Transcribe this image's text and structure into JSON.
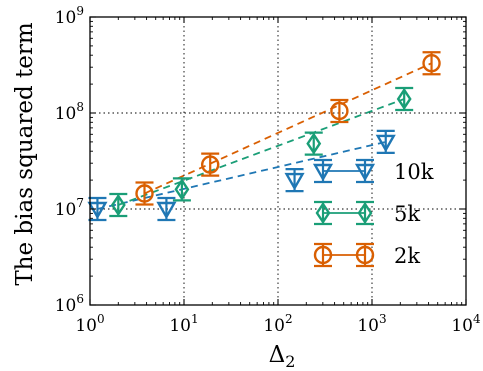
{
  "chart_data": {
    "type": "scatter",
    "title": "",
    "xlabel": "Δ",
    "xlabel_sub": "2",
    "ylabel": "The bias squared term",
    "xscale": "log",
    "yscale": "log",
    "xlim": [
      1,
      10000
    ],
    "ylim": [
      1000000,
      1000000000
    ],
    "grid": true,
    "legend_position": "bottom-right",
    "x_ticks": [
      {
        "base": "10",
        "exp": "0"
      },
      {
        "base": "10",
        "exp": "1"
      },
      {
        "base": "10",
        "exp": "2"
      },
      {
        "base": "10",
        "exp": "3"
      },
      {
        "base": "10",
        "exp": "4"
      }
    ],
    "y_ticks": [
      {
        "base": "10",
        "exp": "6"
      },
      {
        "base": "10",
        "exp": "7"
      },
      {
        "base": "10",
        "exp": "8"
      },
      {
        "base": "10",
        "exp": "9"
      }
    ],
    "series": [
      {
        "name": "10k",
        "color": "#1f77b4",
        "marker": "triangle-down",
        "points": [
          {
            "x": 1.2,
            "y": 10000000
          },
          {
            "x": 6.5,
            "y": 10000000
          },
          {
            "x": 150,
            "y": 20000000
          },
          {
            "x": 1400,
            "y": 50000000
          }
        ]
      },
      {
        "name": "5k",
        "color": "#1a9e77",
        "marker": "diamond",
        "points": [
          {
            "x": 2.0,
            "y": 11000000
          },
          {
            "x": 9.5,
            "y": 16000000
          },
          {
            "x": 240,
            "y": 48000000
          },
          {
            "x": 2200,
            "y": 140000000
          }
        ]
      },
      {
        "name": "2k",
        "color": "#d95f02",
        "marker": "circle",
        "points": [
          {
            "x": 3.8,
            "y": 14500000
          },
          {
            "x": 19,
            "y": 29000000
          },
          {
            "x": 450,
            "y": 105000000
          },
          {
            "x": 4300,
            "y": 330000000
          }
        ]
      }
    ]
  }
}
